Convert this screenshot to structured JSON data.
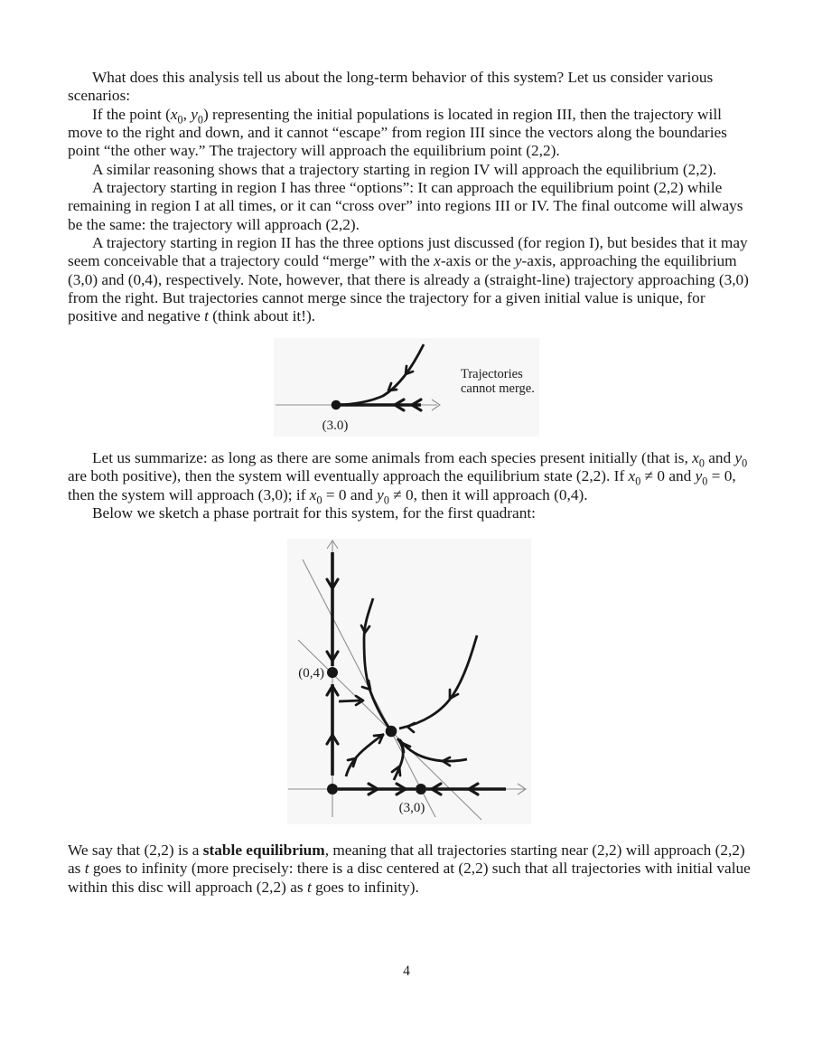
{
  "page_number": "4",
  "body": {
    "paragraphs": [
      {
        "text": "What does this analysis tell us about the long-term behavior of this system? Let us consider various scenarios:"
      },
      {
        "text": "If the point (*x*_{0}, *y*_{0}) representing the initial populations is located in region III, then the trajectory will move to the right and down, and it cannot “escape” from region III since the vectors along the boundaries point “the other way.” The trajectory will approach the equilibrium point (2,2)."
      },
      {
        "text": "A similar reasoning shows that a trajectory starting in region IV will approach the equilibrium (2,2)."
      },
      {
        "text": "A trajectory starting in region I has three “options”: It can approach the equilibrium point (2,2) while remaining in region I at all times, or it can “cross over” into regions III or IV. The final outcome will always be the same: the trajectory will approach (2,2)."
      },
      {
        "text": "A trajectory starting in region II has the three options just discussed (for region I), but besides that it may seem conceivable that a trajectory could “merge” with the *x*-axis or the *y*-axis, approaching the equilibrium (3,0) and (0,4), respectively. Note, however, that there is already a (straight-line) trajectory approaching (3,0) from the right. But trajectories cannot merge since the trajectory for a given initial value is unique, for positive and negative *t* (think about it!)."
      },
      {
        "text": "Let us summarize: as long as there are some animals from each species present initially (that is, *x*_{0} and *y*_{0} are both positive), then the system will eventually approach the equilibrium state (2,2). If *x*_{0} ≠ 0 and *y*_{0} = 0, then the system will approach (3,0); if *x*_{0} = 0 and *y*_{0} ≠ 0, then it will approach (0,4)."
      },
      {
        "text": "Below we sketch a phase portrait for this system, for the first quadrant:"
      },
      {
        "text": "We say that (2,2) is a **stable equilibrium**, meaning that all trajectories starting near (2,2) will approach (2,2) as *t* goes to infinity (more precisely: there is a disc centered at (2,2) such that all trajectories with initial value within this disc will approach (2,2) as *t* goes to infinity)."
      }
    ]
  },
  "figure_merge": {
    "equilibrium_label": "(3.0)",
    "caption_line1": "Trajectories",
    "caption_line2": "cannot merge."
  },
  "figure_phase_portrait": {
    "label_y_equilibrium": "(0,4)",
    "label_x_equilibrium": "(3,0)"
  },
  "colors": {
    "ink": "#161616",
    "axis_gray": "#8f8f8f",
    "figure_background": "#f7f7f7",
    "page_background": "#ffffff"
  }
}
